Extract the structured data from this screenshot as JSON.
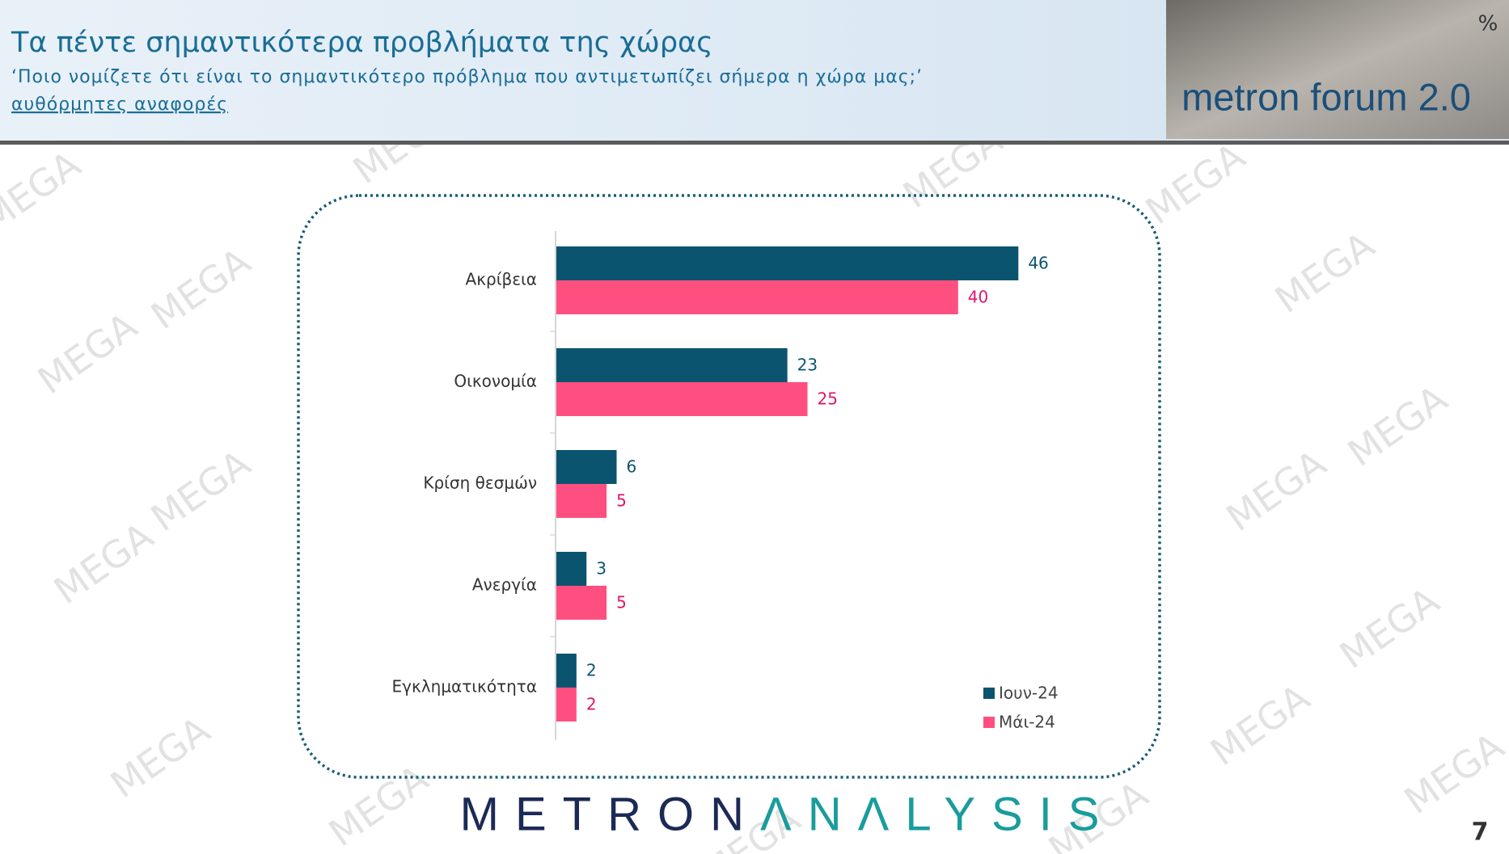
{
  "header": {
    "title": "Τα πέντε σημαντικότερα προβλήματα της χώρας",
    "subtitle": "‘Ποιο νομίζετε ότι είναι το σημαντικότερο πρόβλημα που αντιμετωπίζει σήμερα η χώρα μας;’",
    "note": "αυθόρμητες αναφορές"
  },
  "logo": {
    "text": "metron forum 2.0",
    "symbol": "%"
  },
  "watermark": "MEGA",
  "footer": {
    "brand_first": "METRON",
    "brand_second": "ΛNΛLYSIS",
    "page": "7"
  },
  "chart_data": {
    "type": "hbar",
    "categories": [
      "Ακρίβεια",
      "Οικονομία",
      "Κρίση θεσμών",
      "Ανεργία",
      "Εγκληματικότητα"
    ],
    "series": [
      {
        "name": "Ιουν-24",
        "color": "#0b5470",
        "values": [
          46,
          23,
          6,
          3,
          2
        ]
      },
      {
        "name": "Μάι-24",
        "color": "#ff4f80",
        "label_color": "#e0156a",
        "values": [
          40,
          25,
          5,
          5,
          2
        ]
      }
    ],
    "legend": "lower-right"
  }
}
